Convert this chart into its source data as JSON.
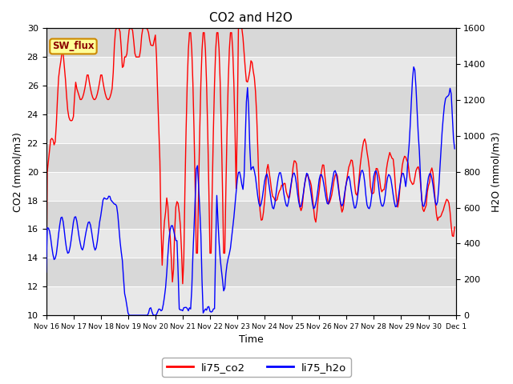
{
  "title": "CO2 and H2O",
  "xlabel": "Time",
  "ylabel_left": "CO2 (mmol/m3)",
  "ylabel_right": "H2O (mmol/m3)",
  "ylim_left": [
    10,
    30
  ],
  "ylim_right": [
    0,
    1600
  ],
  "yticks_left": [
    10,
    12,
    14,
    16,
    18,
    20,
    22,
    24,
    26,
    28,
    30
  ],
  "yticks_right": [
    0,
    200,
    400,
    600,
    800,
    1000,
    1200,
    1400,
    1600
  ],
  "xtick_labels": [
    "Nov 16",
    "Nov 17",
    "Nov 18",
    "Nov 19",
    "Nov 20",
    "Nov 21",
    "Nov 22",
    "Nov 23",
    "Nov 24",
    "Nov 25",
    "Nov 26",
    "Nov 27",
    "Nov 28",
    "Nov 29",
    "Nov 30",
    "Dec 1"
  ],
  "co2_color": "#ff0000",
  "h2o_color": "#0000ff",
  "bg_color": "#d8d8d8",
  "stripe_color": "#e8e8e8",
  "annotation_text": "SW_flux",
  "annotation_bg": "#ffff99",
  "annotation_border": "#cc8800",
  "legend_co2": "li75_co2",
  "legend_h2o": "li75_h2o",
  "linewidth": 1.0
}
